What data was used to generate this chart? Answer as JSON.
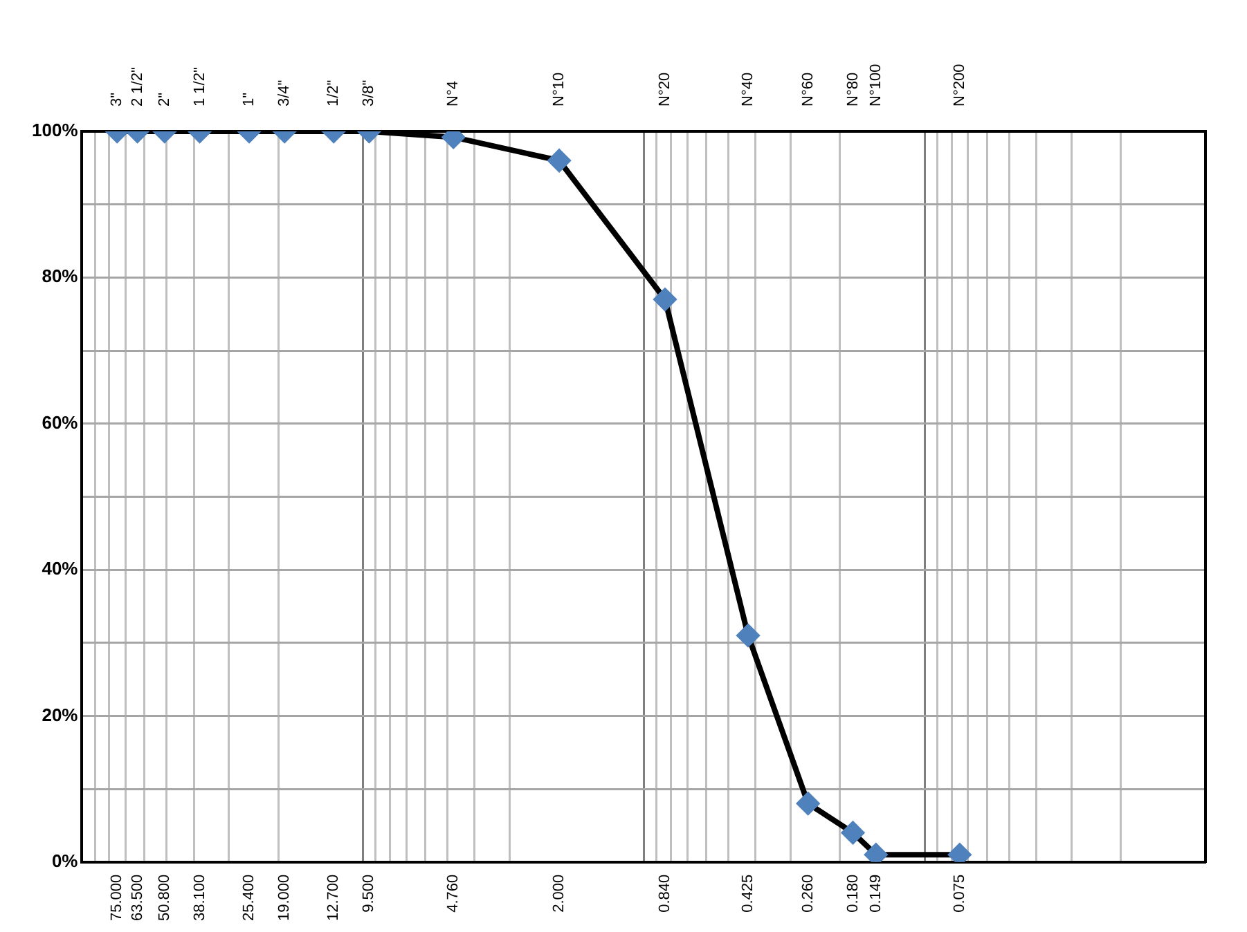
{
  "chart_data": {
    "type": "line",
    "log": "x",
    "grid": true,
    "marker": "diamond",
    "line_style": "solid",
    "xlim": [
      100,
      0.01
    ],
    "ylim": [
      0,
      100
    ],
    "xticks": [
      {
        "value": 75,
        "label": "75.000"
      },
      {
        "value": 63.5,
        "label": "63.500"
      },
      {
        "value": 50.8,
        "label": "50.800"
      },
      {
        "value": 38.1,
        "label": "38.100"
      },
      {
        "value": 25.4,
        "label": "25.400"
      },
      {
        "value": 19,
        "label": "19.000"
      },
      {
        "value": 12.7,
        "label": "12.700"
      },
      {
        "value": 9.5,
        "label": "9.500"
      },
      {
        "value": 4.76,
        "label": "4.760"
      },
      {
        "value": 2,
        "label": "2.000"
      },
      {
        "value": 0.84,
        "label": "0.840"
      },
      {
        "value": 0.425,
        "label": "0.425"
      },
      {
        "value": 0.26,
        "label": "0.260"
      },
      {
        "value": 0.18,
        "label": "0.180"
      },
      {
        "value": 0.149,
        "label": "0.149"
      },
      {
        "value": 0.075,
        "label": "0.075"
      },
      {
        "value": 100,
        "label": null
      },
      {
        "value": 90,
        "label": null
      },
      {
        "value": 80,
        "label": null
      },
      {
        "value": 70,
        "label": null
      },
      {
        "value": 60,
        "label": null
      },
      {
        "value": 50,
        "label": null
      },
      {
        "value": 40,
        "label": null
      },
      {
        "value": 30,
        "label": null
      },
      {
        "value": 20,
        "label": null
      },
      {
        "value": 10,
        "label": null
      },
      {
        "value": 9,
        "label": null
      },
      {
        "value": 8,
        "label": null
      },
      {
        "value": 7,
        "label": null
      },
      {
        "value": 6,
        "label": null
      },
      {
        "value": 5,
        "label": null
      },
      {
        "value": 4,
        "label": null
      },
      {
        "value": 3,
        "label": null
      },
      {
        "value": 1,
        "label": null
      },
      {
        "value": 0.9,
        "label": null
      },
      {
        "value": 0.8,
        "label": null
      },
      {
        "value": 0.7,
        "label": null
      },
      {
        "value": 0.6,
        "label": null
      },
      {
        "value": 0.5,
        "label": null
      },
      {
        "value": 0.4,
        "label": null
      },
      {
        "value": 0.3,
        "label": null
      },
      {
        "value": 0.2,
        "label": null
      },
      {
        "value": 0.1,
        "label": null
      },
      {
        "value": 0.09,
        "label": null
      },
      {
        "value": 0.08,
        "label": null
      },
      {
        "value": 0.07,
        "label": null
      },
      {
        "value": 0.06,
        "label": null
      },
      {
        "value": 0.05,
        "label": null
      },
      {
        "value": 0.04,
        "label": null
      },
      {
        "value": 0.03,
        "label": null
      },
      {
        "value": 0.02,
        "label": null
      },
      {
        "value": 0.01,
        "label": null
      }
    ],
    "annotations": [
      "3\"",
      "2 1/2\"",
      "2\"",
      "1 1/2\"",
      "1\"",
      "3/4\"",
      "1/2\"",
      "3/8\"",
      "N°4",
      "N°10",
      "N°20",
      "N°40",
      "N°60",
      "N°80",
      "N°100",
      "N°200"
    ],
    "yticks": [
      {
        "value": 0,
        "label": "0%"
      },
      {
        "value": 10,
        "label": null
      },
      {
        "value": 20,
        "label": "20%"
      },
      {
        "value": 30,
        "label": null
      },
      {
        "value": 40,
        "label": "40%"
      },
      {
        "value": 50,
        "label": null
      },
      {
        "value": 60,
        "label": "60%"
      },
      {
        "value": 70,
        "label": null
      },
      {
        "value": 80,
        "label": "80%"
      },
      {
        "value": 90,
        "label": null
      },
      {
        "value": 100,
        "label": "100%"
      }
    ],
    "x": [
      75,
      63.5,
      50.8,
      38.1,
      25.4,
      19,
      12.7,
      9.5,
      4.76,
      2,
      0.84,
      0.425,
      0.26,
      0.18,
      0.149,
      0.075
    ],
    "series": [
      {
        "color": "#000000",
        "values": [
          100,
          100,
          100,
          100,
          100,
          100,
          100,
          100,
          99.2,
          96,
          77,
          31,
          8,
          4,
          1,
          1
        ]
      }
    ]
  }
}
